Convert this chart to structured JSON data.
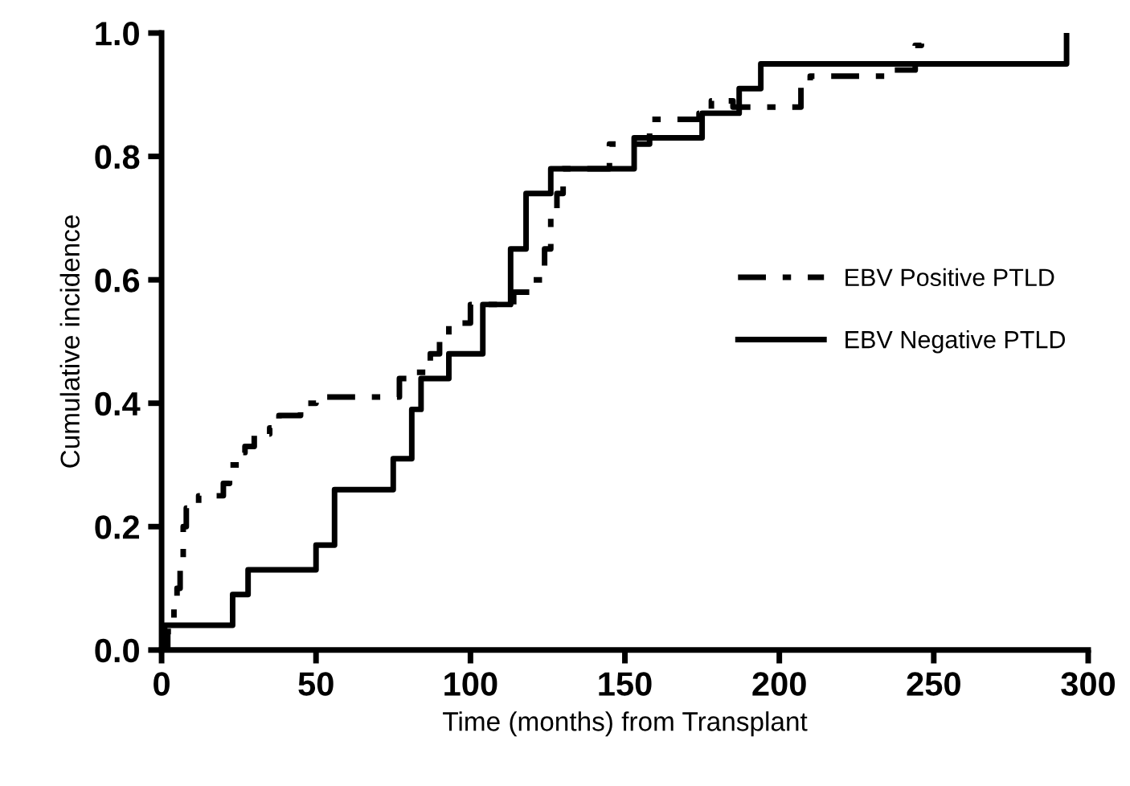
{
  "chart_data": {
    "type": "step",
    "xlabel": "Time (months) from Transplant",
    "ylabel": "Cumulative incidence",
    "xlim": [
      0,
      300
    ],
    "ylim": [
      0,
      1.0
    ],
    "xticks": [
      0,
      50,
      100,
      150,
      200,
      250,
      300
    ],
    "yticks": [
      {
        "value": 0,
        "label": "0.0"
      },
      {
        "value": 0.2,
        "label": "0.2"
      },
      {
        "value": 0.4,
        "label": "0.4"
      },
      {
        "value": 0.6,
        "label": "0.6"
      },
      {
        "value": 0.8,
        "label": "0.8"
      },
      {
        "value": 1.0,
        "label": "1.0"
      }
    ],
    "grid": false,
    "legend": "right",
    "marker": "none",
    "series": [
      {
        "name": "EBV Positive PTLD",
        "color": "#000000",
        "line_style": "dashed",
        "x": [
          0,
          2,
          4,
          5,
          6,
          7,
          8,
          12,
          20,
          22,
          25,
          27,
          30,
          35,
          38,
          45,
          50,
          75,
          77,
          80,
          87,
          90,
          93,
          100,
          114,
          120,
          124,
          126,
          128,
          130,
          145,
          158,
          174,
          178,
          185,
          207,
          210,
          237,
          244,
          246
        ],
        "values": [
          0,
          0.03,
          0.07,
          0.1,
          0.15,
          0.2,
          0.23,
          0.25,
          0.27,
          0.3,
          0.32,
          0.33,
          0.35,
          0.36,
          0.38,
          0.4,
          0.41,
          0.41,
          0.44,
          0.45,
          0.48,
          0.5,
          0.53,
          0.56,
          0.58,
          0.6,
          0.65,
          0.7,
          0.74,
          0.78,
          0.82,
          0.86,
          0.87,
          0.89,
          0.88,
          0.92,
          0.93,
          0.94,
          0.98,
          1.0
        ]
      },
      {
        "name": "EBV Negative PTLD",
        "color": "#000000",
        "line_style": "solid",
        "x": [
          0,
          1,
          23,
          28,
          50,
          56,
          75,
          81,
          84,
          93,
          104,
          113,
          118,
          126,
          153,
          175,
          187,
          194,
          293
        ],
        "values": [
          0,
          0.04,
          0.09,
          0.13,
          0.17,
          0.26,
          0.31,
          0.39,
          0.44,
          0.48,
          0.56,
          0.65,
          0.74,
          0.78,
          0.83,
          0.87,
          0.91,
          0.95,
          1.0
        ]
      }
    ]
  }
}
